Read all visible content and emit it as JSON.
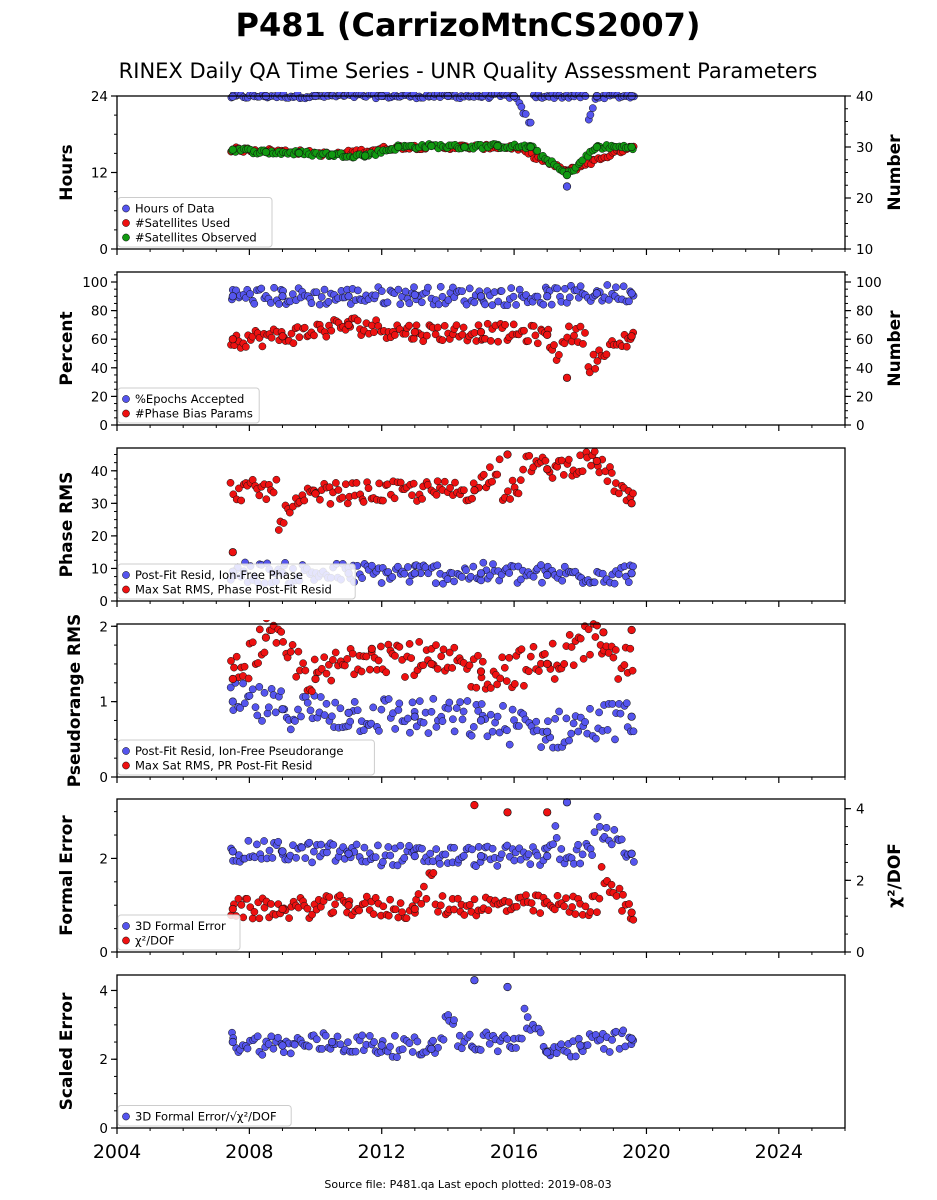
{
  "figure": {
    "title": "P481 (CarrizoMtnCS2007)",
    "subtitle": "RINEX Daily QA Time Series - UNR Quality Assessment Parameters",
    "footer": "Source file: P481.qa Last epoch plotted: 2019-08-03",
    "x_ticks": [
      "2004",
      "2008",
      "2012",
      "2016",
      "2020",
      "2024"
    ]
  },
  "colors": {
    "blue": "#5555ee",
    "red": "#ee1111",
    "green": "#119911",
    "dark_blue": "#10104a"
  },
  "chart_data": [
    {
      "type": "scatter",
      "ylabel": "Hours",
      "ylabel_right": "Number",
      "xlim": [
        2004,
        2026
      ],
      "ylim": [
        0,
        24
      ],
      "ylim_right": [
        10,
        40
      ],
      "yticks": [
        "0",
        "12",
        "24"
      ],
      "yticks_right": [
        "10",
        "20",
        "30",
        "40"
      ],
      "legend_placement": "lower-left",
      "series": [
        {
          "name": "Hours of Data",
          "axis": "left",
          "color": "#5555ee",
          "x": [
            2007.5,
            2008.5,
            2010,
            2012,
            2014,
            2016,
            2017.6,
            2018.5,
            2019.55
          ],
          "y": [
            23.9,
            24,
            24,
            24,
            24,
            24,
            9.8,
            24,
            24
          ]
        },
        {
          "name": "#Satellites Used",
          "axis": "right",
          "color": "#ee1111",
          "x": [
            2007.6,
            2009.5,
            2010.5,
            2012.5,
            2014,
            2016,
            2017.6,
            2019.5
          ],
          "y": [
            29.5,
            29,
            28.5,
            30,
            30,
            30,
            25.2,
            30
          ]
        },
        {
          "name": "#Satellites Observed",
          "axis": "right",
          "color": "#119911",
          "x": [
            2007.5,
            2008.5,
            2009.5,
            2010.5,
            2011.5,
            2012.5,
            2013.5,
            2014.5,
            2015.5,
            2016.5,
            2017.6,
            2018.5,
            2019.55
          ],
          "y": [
            29.5,
            29,
            28.8,
            28.5,
            28.3,
            30,
            30.2,
            30,
            30.2,
            30,
            24.5,
            30,
            30
          ]
        }
      ]
    },
    {
      "type": "scatter",
      "ylabel": "Percent",
      "ylabel_right": "Number",
      "xlim": [
        2004,
        2026
      ],
      "ylim": [
        0,
        107
      ],
      "ylim_right": [
        0,
        107
      ],
      "yticks": [
        "0",
        "20",
        "40",
        "60",
        "80",
        "100"
      ],
      "yticks_right": [
        "0",
        "20",
        "40",
        "60",
        "80",
        "100"
      ],
      "legend_placement": "lower-left",
      "series": [
        {
          "name": "%Epochs Accepted",
          "axis": "left",
          "color": "#5555ee",
          "x": [
            2007.5,
            2009,
            2011,
            2013,
            2015,
            2017,
            2018.5,
            2019.55
          ],
          "y": [
            90,
            90,
            90,
            91,
            90,
            90,
            92,
            92
          ]
        },
        {
          "name": "#Phase Bias Params",
          "axis": "right",
          "color": "#ee1111",
          "x": [
            2007.5,
            2009,
            2011,
            2013,
            2015,
            2017,
            2017.6,
            2019.55
          ],
          "y": [
            60,
            62,
            70,
            65,
            65,
            63,
            33,
            62
          ]
        }
      ]
    },
    {
      "type": "scatter",
      "ylabel": "Phase RMS",
      "xlim": [
        2004,
        2026
      ],
      "ylim": [
        0,
        47
      ],
      "yticks": [
        "0",
        "10",
        "20",
        "30",
        "40"
      ],
      "legend_placement": "lower-left",
      "series": [
        {
          "name": "Post-Fit Resid, Ion-Free Phase",
          "color": "#5555ee",
          "x": [
            2007.5,
            2009,
            2011,
            2013,
            2015,
            2017,
            2019.55
          ],
          "y": [
            9,
            8.5,
            8.5,
            8.5,
            8.5,
            8,
            8.5
          ]
        },
        {
          "name": "Max Sat RMS, Phase Post-Fit Resid",
          "color": "#ee1111",
          "x": [
            2007.5,
            2010,
            2014.8,
            2015.8,
            2017,
            2018.5,
            2019.55
          ],
          "y": [
            15,
            33,
            34,
            45,
            40.5,
            43,
            30
          ]
        }
      ]
    },
    {
      "type": "scatter",
      "ylabel": "Pseudorange RMS",
      "xlim": [
        2004,
        2026
      ],
      "ylim": [
        0,
        2.03
      ],
      "yticks": [
        "0",
        "1",
        "2"
      ],
      "legend_placement": "lower-left",
      "series": [
        {
          "name": "Post-Fit Resid, Ion-Free Pseudorange",
          "color": "#5555ee",
          "x": [
            2007.5,
            2009,
            2011,
            2013,
            2015,
            2017,
            2019.55
          ],
          "y": [
            1.0,
            0.9,
            0.85,
            0.8,
            0.75,
            0.6,
            0.8
          ]
        },
        {
          "name": "Max Sat RMS, PR Post-Fit Resid",
          "color": "#ee1111",
          "x": [
            2007.5,
            2008.5,
            2010,
            2011.7,
            2013.5,
            2015,
            2017,
            2018.7,
            2019.55
          ],
          "y": [
            1.3,
            1.85,
            1.3,
            1.7,
            1.5,
            1.4,
            1.5,
            1.92,
            1.95
          ]
        }
      ]
    },
    {
      "type": "scatter",
      "ylabel": "Formal Error",
      "ylabel_right": "χ²/DOF",
      "xlim": [
        2004,
        2026
      ],
      "ylim": [
        0,
        3.27
      ],
      "ylim_right": [
        0,
        4.27
      ],
      "yticks": [
        "0",
        "2"
      ],
      "yticks_right": [
        "0",
        "2",
        "4"
      ],
      "legend_placement": "lower-left",
      "series": [
        {
          "name": "3D Formal Error",
          "axis": "left",
          "color": "#5555ee",
          "x": [
            2007.5,
            2009,
            2011,
            2013,
            2015,
            2017,
            2017.6,
            2019.55
          ],
          "y": [
            2.15,
            2.15,
            2.1,
            2.05,
            2.05,
            2.05,
            3.2,
            2.1
          ]
        },
        {
          "name": "χ²/DOF",
          "axis": "right",
          "color": "#ee1111",
          "x": [
            2007.5,
            2009,
            2011,
            2013,
            2014.8,
            2015.8,
            2017,
            2019.55
          ],
          "y": [
            1.2,
            1.2,
            1.3,
            1.2,
            4.1,
            3.9,
            3.9,
            1.1
          ]
        }
      ]
    },
    {
      "type": "scatter",
      "ylabel": "Scaled Error",
      "xlim": [
        2004,
        2026
      ],
      "ylim": [
        0,
        4.45
      ],
      "yticks": [
        "0",
        "2",
        "4"
      ],
      "legend_placement": "lower-left",
      "series": [
        {
          "name": "3D Formal Error/√χ²/DOF",
          "color": "#5555ee",
          "x": [
            2007.5,
            2009,
            2010.5,
            2012,
            2013.5,
            2014.8,
            2015.8,
            2017,
            2018,
            2019.55
          ],
          "y": [
            2.5,
            2.4,
            2.5,
            2.4,
            2.3,
            4.3,
            4.1,
            2.2,
            2.4,
            2.6
          ]
        }
      ]
    }
  ]
}
